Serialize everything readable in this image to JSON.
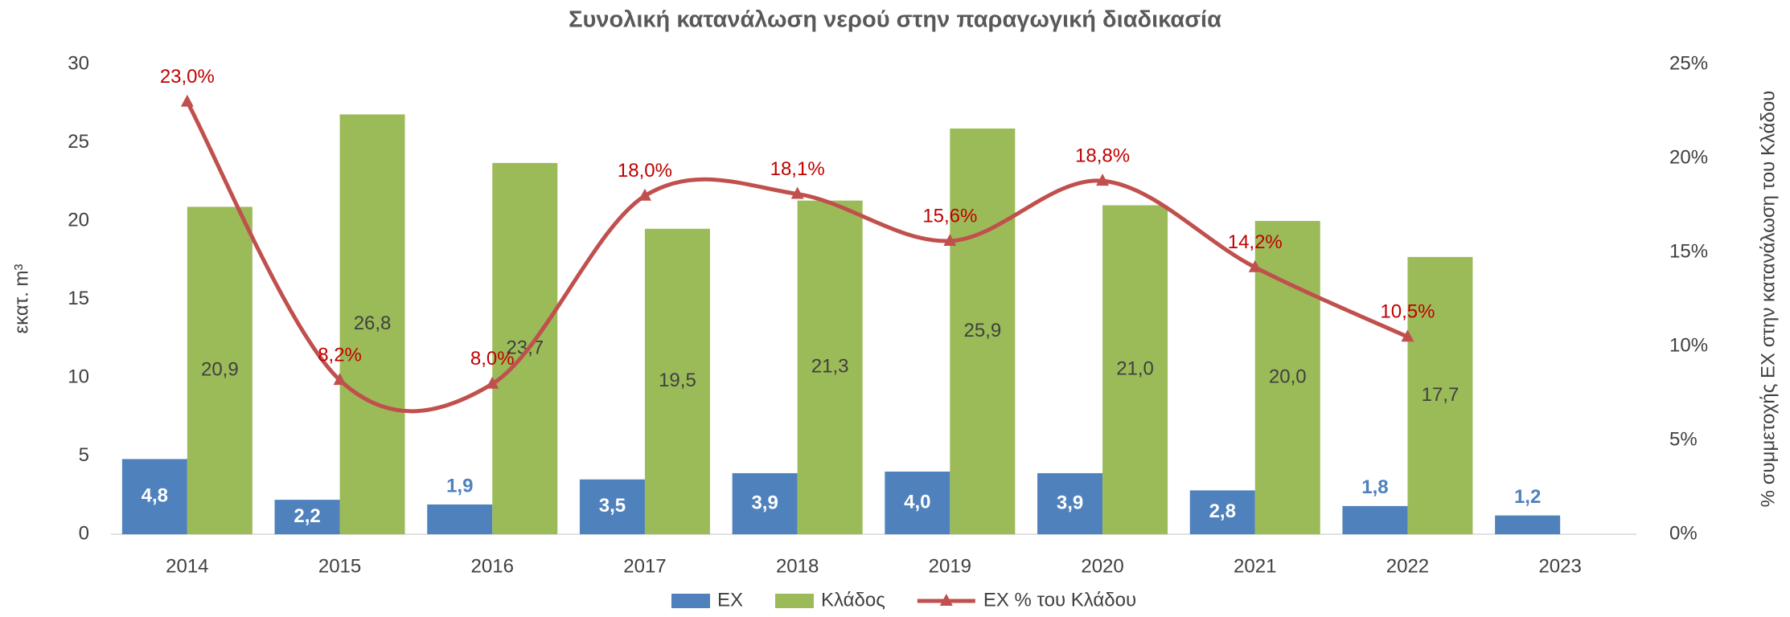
{
  "chart_data": {
    "type": "bar_line",
    "title": "Συνολική κατανάλωση νερού στην  παραγωγική διαδικασία",
    "y_label": "εκατ. m³",
    "y2_label": "% συμμετοχής ΕΧ στην κατανάλωση του Κλάδου",
    "categories": [
      "2014",
      "2015",
      "2016",
      "2017",
      "2018",
      "2019",
      "2020",
      "2021",
      "2022",
      "2023"
    ],
    "series": [
      {
        "name": "ΕΧ",
        "type": "bar",
        "color": "#4f81bd",
        "values": [
          4.8,
          2.2,
          1.9,
          3.5,
          3.9,
          4.0,
          3.9,
          2.8,
          1.8,
          1.2
        ],
        "value_labels": [
          "4,8",
          "2,2",
          "1,9",
          "3,5",
          "3,9",
          "4,0",
          "3,9",
          "2,8",
          "1,8",
          "1,2"
        ]
      },
      {
        "name": "Κλάδος",
        "type": "bar",
        "color": "#9bbb59",
        "values": [
          20.9,
          26.8,
          23.7,
          19.5,
          21.3,
          25.9,
          21.0,
          20.0,
          17.7,
          null
        ],
        "value_labels": [
          "20,9",
          "26,8",
          "23,7",
          "19,5",
          "21,3",
          "25,9",
          "21,0",
          "20,0",
          "17,7",
          null
        ]
      },
      {
        "name": "ΕΧ % του Κλάδου",
        "type": "line",
        "axis": "y2",
        "color": "#c0504d",
        "label_color": "#c00000",
        "values": [
          23.0,
          8.2,
          8.0,
          18.0,
          18.1,
          15.6,
          18.8,
          14.2,
          10.5,
          null
        ],
        "value_labels": [
          "23,0%",
          "8,2%",
          "8,0%",
          "18,0%",
          "18,1%",
          "15,6%",
          "18,8%",
          "14,2%",
          "10,5%",
          null
        ]
      }
    ],
    "ylim": [
      0,
      30
    ],
    "yticks": [
      0,
      5,
      10,
      15,
      20,
      25,
      30
    ],
    "y2lim": [
      0,
      25
    ],
    "y2ticks": [
      {
        "value": 0,
        "label": "0%"
      },
      {
        "value": 5,
        "label": "5%"
      },
      {
        "value": 10,
        "label": "10%"
      },
      {
        "value": 15,
        "label": "15%"
      },
      {
        "value": 20,
        "label": "20%"
      },
      {
        "value": 25,
        "label": "25%"
      }
    ],
    "legend": "bottom",
    "grid": false
  }
}
